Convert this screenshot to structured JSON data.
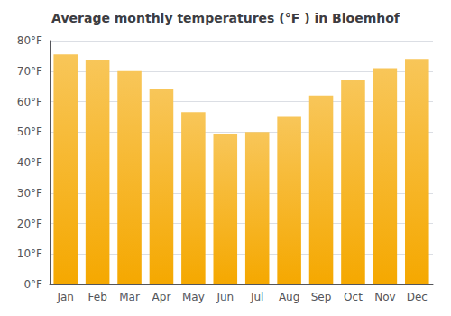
{
  "chart_data": {
    "type": "bar",
    "title": "Average monthly temperatures (°F ) in Bloemhof",
    "categories": [
      "Jan",
      "Feb",
      "Mar",
      "Apr",
      "May",
      "Jun",
      "Jul",
      "Aug",
      "Sep",
      "Oct",
      "Nov",
      "Dec"
    ],
    "values": [
      75.5,
      73.5,
      70.0,
      64.0,
      56.5,
      49.5,
      50.0,
      55.0,
      62.0,
      67.0,
      71.0,
      74.0
    ],
    "color": "#F5A800",
    "ylim": [
      0,
      80
    ],
    "yticks": [
      {
        "value": 0,
        "label": "0°F"
      },
      {
        "value": 10,
        "label": "10°F"
      },
      {
        "value": 20,
        "label": "20°F"
      },
      {
        "value": 30,
        "label": "30°F"
      },
      {
        "value": 40,
        "label": "40°F"
      },
      {
        "value": 50,
        "label": "50°F"
      },
      {
        "value": 60,
        "label": "60°F"
      },
      {
        "value": 70,
        "label": "70°F"
      },
      {
        "value": 80,
        "label": "80°F"
      }
    ],
    "grid": true
  }
}
